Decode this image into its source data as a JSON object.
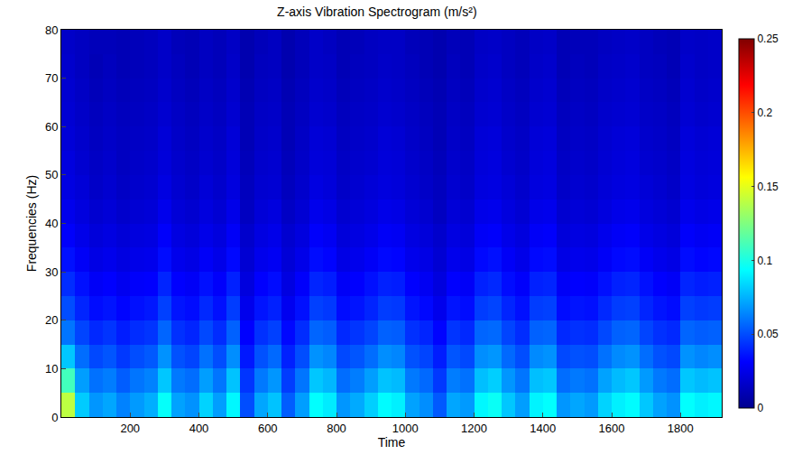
{
  "chart_data": {
    "type": "heatmap",
    "title": "Z-axis Vibration Spectrogram (m/s²)",
    "x_label": "Time",
    "y_label": "Frequencies (Hz)",
    "x": [
      20,
      60,
      100,
      140,
      180,
      220,
      260,
      300,
      340,
      380,
      420,
      460,
      500,
      540,
      580,
      620,
      660,
      700,
      740,
      780,
      820,
      860,
      900,
      940,
      980,
      1020,
      1060,
      1100,
      1140,
      1180,
      1220,
      1260,
      1300,
      1340,
      1380,
      1420,
      1460,
      1500,
      1540,
      1580,
      1620,
      1660,
      1700,
      1740,
      1780,
      1820,
      1860,
      1900
    ],
    "y": [
      2.5,
      7.5,
      12.5,
      17.5,
      22.5,
      27.5,
      32.5,
      37.5,
      42.5,
      47.5,
      52.5,
      57.5,
      62.5,
      67.5,
      72.5,
      77.5
    ],
    "z": [
      [
        0.14,
        0.081,
        0.068,
        0.072,
        0.063,
        0.069,
        0.074,
        0.095,
        0.071,
        0.067,
        0.083,
        0.07,
        0.092,
        0.05,
        0.072,
        0.079,
        0.054,
        0.07,
        0.094,
        0.089,
        0.068,
        0.073,
        0.082,
        0.093,
        0.09,
        0.071,
        0.066,
        0.053,
        0.072,
        0.069,
        0.092,
        0.096,
        0.08,
        0.07,
        0.091,
        0.094,
        0.068,
        0.072,
        0.069,
        0.083,
        0.09,
        0.093,
        0.08,
        0.071,
        0.067,
        0.094,
        0.09,
        0.092
      ],
      [
        0.11,
        0.07,
        0.059,
        0.062,
        0.054,
        0.06,
        0.063,
        0.08,
        0.061,
        0.058,
        0.07,
        0.06,
        0.079,
        0.044,
        0.061,
        0.068,
        0.046,
        0.06,
        0.08,
        0.076,
        0.058,
        0.062,
        0.07,
        0.079,
        0.077,
        0.061,
        0.057,
        0.045,
        0.062,
        0.059,
        0.078,
        0.082,
        0.068,
        0.06,
        0.078,
        0.08,
        0.058,
        0.061,
        0.059,
        0.071,
        0.077,
        0.08,
        0.069,
        0.061,
        0.058,
        0.08,
        0.077,
        0.079
      ],
      [
        0.08,
        0.058,
        0.049,
        0.052,
        0.045,
        0.05,
        0.053,
        0.067,
        0.051,
        0.048,
        0.059,
        0.05,
        0.066,
        0.037,
        0.051,
        0.057,
        0.039,
        0.05,
        0.067,
        0.064,
        0.049,
        0.052,
        0.058,
        0.066,
        0.064,
        0.051,
        0.048,
        0.038,
        0.052,
        0.049,
        0.066,
        0.068,
        0.057,
        0.05,
        0.065,
        0.067,
        0.049,
        0.051,
        0.05,
        0.059,
        0.065,
        0.067,
        0.058,
        0.051,
        0.049,
        0.067,
        0.064,
        0.066
      ],
      [
        0.06,
        0.048,
        0.041,
        0.044,
        0.038,
        0.042,
        0.044,
        0.056,
        0.043,
        0.04,
        0.049,
        0.042,
        0.055,
        0.031,
        0.043,
        0.047,
        0.033,
        0.042,
        0.056,
        0.054,
        0.041,
        0.044,
        0.048,
        0.055,
        0.054,
        0.043,
        0.04,
        0.032,
        0.044,
        0.041,
        0.056,
        0.057,
        0.048,
        0.042,
        0.055,
        0.056,
        0.041,
        0.043,
        0.042,
        0.049,
        0.055,
        0.056,
        0.048,
        0.043,
        0.041,
        0.056,
        0.054,
        0.055
      ],
      [
        0.05,
        0.04,
        0.034,
        0.036,
        0.032,
        0.035,
        0.037,
        0.047,
        0.036,
        0.034,
        0.041,
        0.035,
        0.046,
        0.026,
        0.036,
        0.039,
        0.027,
        0.035,
        0.047,
        0.045,
        0.034,
        0.036,
        0.04,
        0.046,
        0.045,
        0.036,
        0.033,
        0.026,
        0.036,
        0.034,
        0.046,
        0.048,
        0.04,
        0.035,
        0.046,
        0.047,
        0.034,
        0.036,
        0.035,
        0.041,
        0.046,
        0.047,
        0.04,
        0.036,
        0.034,
        0.047,
        0.045,
        0.046
      ],
      [
        0.042,
        0.035,
        0.029,
        0.031,
        0.027,
        0.03,
        0.031,
        0.04,
        0.031,
        0.029,
        0.035,
        0.03,
        0.039,
        0.022,
        0.031,
        0.034,
        0.023,
        0.03,
        0.04,
        0.038,
        0.029,
        0.031,
        0.035,
        0.039,
        0.038,
        0.031,
        0.028,
        0.022,
        0.031,
        0.029,
        0.039,
        0.041,
        0.034,
        0.03,
        0.039,
        0.04,
        0.029,
        0.031,
        0.03,
        0.035,
        0.039,
        0.04,
        0.035,
        0.031,
        0.029,
        0.04,
        0.038,
        0.039
      ],
      [
        0.035,
        0.029,
        0.024,
        0.026,
        0.023,
        0.025,
        0.026,
        0.034,
        0.026,
        0.024,
        0.029,
        0.025,
        0.033,
        0.019,
        0.026,
        0.028,
        0.02,
        0.025,
        0.034,
        0.032,
        0.024,
        0.026,
        0.029,
        0.033,
        0.032,
        0.026,
        0.024,
        0.019,
        0.026,
        0.024,
        0.033,
        0.035,
        0.029,
        0.025,
        0.033,
        0.034,
        0.024,
        0.026,
        0.025,
        0.029,
        0.033,
        0.034,
        0.029,
        0.026,
        0.024,
        0.034,
        0.032,
        0.033
      ],
      [
        0.03,
        0.025,
        0.021,
        0.023,
        0.02,
        0.022,
        0.023,
        0.03,
        0.023,
        0.021,
        0.025,
        0.022,
        0.029,
        0.017,
        0.023,
        0.025,
        0.018,
        0.022,
        0.03,
        0.028,
        0.021,
        0.023,
        0.025,
        0.029,
        0.028,
        0.023,
        0.021,
        0.017,
        0.023,
        0.021,
        0.029,
        0.03,
        0.025,
        0.022,
        0.029,
        0.03,
        0.021,
        0.023,
        0.022,
        0.026,
        0.029,
        0.03,
        0.025,
        0.023,
        0.021,
        0.03,
        0.028,
        0.029
      ],
      [
        0.026,
        0.022,
        0.018,
        0.02,
        0.017,
        0.019,
        0.02,
        0.026,
        0.02,
        0.018,
        0.022,
        0.019,
        0.025,
        0.014,
        0.02,
        0.022,
        0.015,
        0.019,
        0.026,
        0.024,
        0.018,
        0.02,
        0.022,
        0.025,
        0.024,
        0.02,
        0.018,
        0.014,
        0.02,
        0.018,
        0.025,
        0.026,
        0.022,
        0.019,
        0.025,
        0.026,
        0.018,
        0.02,
        0.019,
        0.022,
        0.025,
        0.026,
        0.022,
        0.02,
        0.018,
        0.026,
        0.024,
        0.025
      ],
      [
        0.023,
        0.02,
        0.016,
        0.018,
        0.015,
        0.017,
        0.018,
        0.023,
        0.018,
        0.016,
        0.02,
        0.017,
        0.022,
        0.013,
        0.018,
        0.019,
        0.013,
        0.017,
        0.023,
        0.021,
        0.016,
        0.018,
        0.02,
        0.022,
        0.021,
        0.018,
        0.016,
        0.013,
        0.018,
        0.016,
        0.022,
        0.023,
        0.02,
        0.017,
        0.022,
        0.023,
        0.016,
        0.018,
        0.017,
        0.02,
        0.022,
        0.023,
        0.02,
        0.018,
        0.016,
        0.023,
        0.021,
        0.022
      ],
      [
        0.022,
        0.018,
        0.015,
        0.017,
        0.014,
        0.016,
        0.017,
        0.021,
        0.017,
        0.015,
        0.018,
        0.016,
        0.021,
        0.012,
        0.017,
        0.018,
        0.012,
        0.016,
        0.021,
        0.02,
        0.015,
        0.017,
        0.018,
        0.021,
        0.02,
        0.017,
        0.015,
        0.012,
        0.017,
        0.015,
        0.021,
        0.022,
        0.018,
        0.016,
        0.021,
        0.022,
        0.015,
        0.017,
        0.016,
        0.019,
        0.021,
        0.022,
        0.018,
        0.017,
        0.015,
        0.022,
        0.02,
        0.021
      ],
      [
        0.02,
        0.017,
        0.014,
        0.016,
        0.014,
        0.015,
        0.016,
        0.02,
        0.016,
        0.014,
        0.017,
        0.015,
        0.02,
        0.011,
        0.016,
        0.017,
        0.011,
        0.015,
        0.02,
        0.019,
        0.014,
        0.016,
        0.017,
        0.02,
        0.019,
        0.016,
        0.014,
        0.011,
        0.016,
        0.014,
        0.02,
        0.021,
        0.017,
        0.015,
        0.02,
        0.021,
        0.014,
        0.016,
        0.015,
        0.018,
        0.02,
        0.021,
        0.017,
        0.016,
        0.014,
        0.021,
        0.019,
        0.02
      ],
      [
        0.019,
        0.016,
        0.013,
        0.015,
        0.013,
        0.014,
        0.015,
        0.018,
        0.015,
        0.013,
        0.016,
        0.014,
        0.018,
        0.011,
        0.015,
        0.016,
        0.011,
        0.014,
        0.018,
        0.017,
        0.013,
        0.015,
        0.016,
        0.018,
        0.017,
        0.015,
        0.013,
        0.011,
        0.015,
        0.013,
        0.018,
        0.019,
        0.016,
        0.014,
        0.018,
        0.019,
        0.013,
        0.015,
        0.014,
        0.017,
        0.018,
        0.019,
        0.016,
        0.015,
        0.013,
        0.019,
        0.017,
        0.018
      ],
      [
        0.018,
        0.015,
        0.012,
        0.014,
        0.012,
        0.013,
        0.014,
        0.017,
        0.014,
        0.012,
        0.015,
        0.013,
        0.017,
        0.01,
        0.014,
        0.015,
        0.01,
        0.013,
        0.017,
        0.016,
        0.012,
        0.014,
        0.015,
        0.017,
        0.016,
        0.014,
        0.012,
        0.01,
        0.014,
        0.012,
        0.017,
        0.018,
        0.015,
        0.013,
        0.017,
        0.018,
        0.012,
        0.014,
        0.013,
        0.016,
        0.017,
        0.018,
        0.015,
        0.014,
        0.012,
        0.018,
        0.016,
        0.017
      ],
      [
        0.017,
        0.014,
        0.011,
        0.013,
        0.011,
        0.012,
        0.013,
        0.016,
        0.013,
        0.011,
        0.014,
        0.012,
        0.016,
        0.009,
        0.013,
        0.014,
        0.009,
        0.012,
        0.016,
        0.015,
        0.011,
        0.013,
        0.014,
        0.016,
        0.015,
        0.013,
        0.011,
        0.009,
        0.013,
        0.011,
        0.016,
        0.017,
        0.014,
        0.012,
        0.016,
        0.017,
        0.011,
        0.013,
        0.012,
        0.015,
        0.016,
        0.017,
        0.014,
        0.013,
        0.011,
        0.017,
        0.015,
        0.016
      ],
      [
        0.016,
        0.014,
        0.012,
        0.012,
        0.011,
        0.012,
        0.013,
        0.016,
        0.012,
        0.011,
        0.014,
        0.012,
        0.015,
        0.009,
        0.012,
        0.014,
        0.009,
        0.012,
        0.016,
        0.014,
        0.011,
        0.012,
        0.014,
        0.015,
        0.015,
        0.012,
        0.011,
        0.009,
        0.012,
        0.011,
        0.015,
        0.016,
        0.014,
        0.012,
        0.015,
        0.016,
        0.011,
        0.012,
        0.012,
        0.014,
        0.015,
        0.016,
        0.014,
        0.012,
        0.011,
        0.016,
        0.015,
        0.016
      ]
    ],
    "xlim": [
      0,
      1920
    ],
    "ylim": [
      0,
      80
    ],
    "xticks": [
      200,
      400,
      600,
      800,
      1000,
      1200,
      1400,
      1600,
      1800
    ],
    "yticks": [
      0,
      10,
      20,
      30,
      40,
      50,
      60,
      70,
      80
    ],
    "colorbar_range": [
      0,
      0.25
    ],
    "colorbar_ticks": [
      0,
      0.05,
      0.1,
      0.15,
      0.2,
      0.25
    ]
  }
}
